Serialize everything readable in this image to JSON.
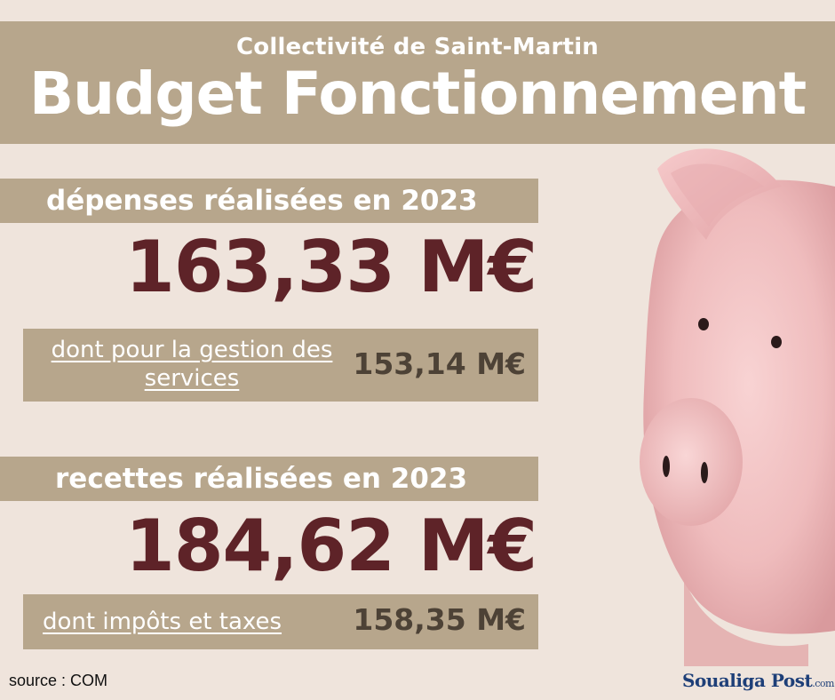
{
  "header": {
    "subtitle": "Collectivité de Saint-Martin",
    "title": "Budget Fonctionnement"
  },
  "expenses": {
    "heading": "dépenses réalisées en 2023",
    "total": "163,33 M€",
    "detail_label": "dont pour la gestion des services",
    "detail_value": "153,14 M€"
  },
  "revenue": {
    "heading": "recettes réalisées en 2023",
    "total": "184,62 M€",
    "detail_label": "dont impôts et taxes",
    "detail_value": "158,35 M€"
  },
  "footer": {
    "source": "source : COM",
    "logo_name": "Soualiga Post",
    "logo_suffix": ".com"
  },
  "illustration": {
    "icon": "piggy-bank-icon"
  },
  "colors": {
    "background": "#efe4dc",
    "band": "#b7a68c",
    "big_number": "#5e2328",
    "detail_number": "#4d4236",
    "pig": "#f2c3c4"
  }
}
